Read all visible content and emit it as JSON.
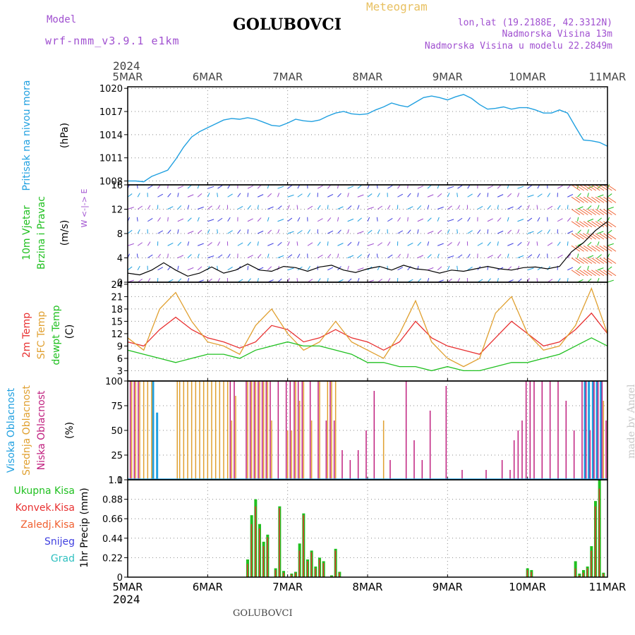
{
  "header": {
    "model_label": "Model",
    "model_name": "wrf-nmm_v3.9.1 e1km",
    "station": "GOLUBOVCI",
    "product": "Meteogram",
    "lonlat": "lon,lat (19.2188E, 42.3312N)",
    "elevation": "Nadmorska Visina 13m",
    "model_elevation": "Nadmorska Visina u modelu 22.2849m",
    "year": "2024",
    "footer_station": "GOLUBOVCI",
    "watermark": "made by Angel"
  },
  "colors": {
    "purple": "#a050d0",
    "orange": "#e8c060",
    "cyan": "#20a0e0",
    "green": "#20c020",
    "red": "#e83030",
    "brown": "#e0a030",
    "blue": "#4040e0",
    "magenta": "#c0207f",
    "teal": "#30c0c0",
    "lightgray": "#c8c8c8",
    "orangered": "#f06030"
  },
  "chart_data": [
    {
      "type": "line",
      "x_labels": [
        "5MAR",
        "6MAR",
        "7MAR",
        "8MAR",
        "9MAR",
        "10MAR",
        "11MAR"
      ],
      "x": [
        0.0,
        0.1,
        0.2,
        0.3,
        0.4,
        0.5,
        0.6,
        0.7,
        0.8,
        0.9,
        1.0,
        1.1,
        1.2,
        1.3,
        1.4,
        1.5,
        1.6,
        1.7,
        1.8,
        1.9,
        2.0,
        2.1,
        2.2,
        2.3,
        2.4,
        2.5,
        2.6,
        2.7,
        2.8,
        2.9,
        3.0,
        3.1,
        3.2,
        3.3,
        3.4,
        3.5,
        3.6,
        3.7,
        3.8,
        3.9,
        4.0,
        4.1,
        4.2,
        4.3,
        4.4,
        4.5,
        4.6,
        4.7,
        4.8,
        4.9,
        5.0,
        5.1,
        5.2,
        5.3,
        5.4,
        5.5,
        5.6,
        5.7,
        5.8,
        5.9,
        6.0
      ],
      "series": [
        {
          "values": [
            1008.0,
            1008.0,
            1007.9,
            1008.6,
            1009.0,
            1009.4,
            1010.8,
            1012.4,
            1013.7,
            1014.4,
            1014.9,
            1015.4,
            1015.9,
            1016.1,
            1016.0,
            1016.2,
            1016.0,
            1015.6,
            1015.2,
            1015.1,
            1015.5,
            1016.0,
            1015.8,
            1015.7,
            1015.9,
            1016.4,
            1016.8,
            1017.0,
            1016.7,
            1016.6,
            1016.7,
            1017.2,
            1017.6,
            1018.1,
            1017.8,
            1017.6,
            1018.2,
            1018.8,
            1019.0,
            1018.8,
            1018.5,
            1018.9,
            1019.2,
            1018.7,
            1017.9,
            1017.3,
            1017.4,
            1017.6,
            1017.3,
            1017.5,
            1017.5,
            1017.2,
            1016.8,
            1016.8,
            1017.2,
            1016.8,
            1015.0,
            1013.3,
            1013.2,
            1013.0,
            1012.5
          ]
        }
      ],
      "ylabel": "(hPa)",
      "ylabel_left": "Pritisak na nivou mora",
      "yticks": [
        1008,
        1011,
        1014,
        1017,
        1020
      ],
      "ylim": [
        1007.5,
        1020.2
      ],
      "grid": true
    },
    {
      "type": "line",
      "x": [
        0.0,
        0.15,
        0.3,
        0.45,
        0.6,
        0.75,
        0.9,
        1.05,
        1.2,
        1.35,
        1.5,
        1.65,
        1.8,
        1.95,
        2.1,
        2.25,
        2.4,
        2.55,
        2.7,
        2.85,
        3.0,
        3.15,
        3.3,
        3.45,
        3.6,
        3.75,
        3.9,
        4.05,
        4.2,
        4.35,
        4.5,
        4.65,
        4.8,
        4.95,
        5.1,
        5.25,
        5.4,
        5.55,
        5.7,
        5.85,
        6.0
      ],
      "series": [
        {
          "values": [
            1.5,
            1.2,
            2.0,
            3.2,
            2.0,
            1.0,
            1.5,
            2.5,
            1.5,
            2.0,
            3.0,
            2.0,
            1.8,
            2.6,
            2.4,
            1.8,
            2.5,
            2.8,
            2.0,
            1.6,
            2.2,
            2.6,
            2.0,
            2.8,
            2.2,
            2.0,
            1.5,
            2.0,
            1.8,
            2.2,
            2.6,
            2.2,
            2.0,
            2.4,
            2.5,
            2.2,
            2.6,
            5.0,
            6.5,
            8.5,
            10.0
          ]
        }
      ],
      "ylabel": "(m/s)",
      "ylabel_left": [
        "10m Vjetar",
        "Brzina i Pravac"
      ],
      "legend_compass": "W <-|-> E",
      "yticks": [
        0,
        4,
        8,
        12,
        16
      ],
      "ylim": [
        0,
        16
      ],
      "grid": true
    },
    {
      "type": "line",
      "x": [
        0.0,
        0.2,
        0.4,
        0.6,
        0.8,
        1.0,
        1.2,
        1.4,
        1.6,
        1.8,
        2.0,
        2.2,
        2.4,
        2.6,
        2.8,
        3.0,
        3.2,
        3.4,
        3.6,
        3.8,
        4.0,
        4.2,
        4.4,
        4.6,
        4.8,
        5.0,
        5.2,
        5.4,
        5.6,
        5.8,
        6.0
      ],
      "series": [
        {
          "name": "2m Temp",
          "values": [
            10,
            9,
            13,
            16,
            13,
            11,
            10,
            8.5,
            10,
            14,
            13,
            10,
            11,
            13,
            11,
            10,
            8,
            10,
            15,
            11,
            9,
            8,
            7,
            11,
            15,
            12,
            9,
            10,
            13,
            17,
            12
          ]
        },
        {
          "name": "SFC Temp",
          "values": [
            11,
            8,
            18,
            22,
            15,
            10,
            9,
            7,
            14,
            18,
            12,
            8,
            10,
            15,
            10,
            8,
            6,
            12,
            20,
            10,
            6,
            4,
            6,
            17,
            21,
            12,
            8,
            9,
            14,
            23,
            12
          ]
        },
        {
          "name": "dewpt Temp",
          "values": [
            8,
            7,
            6,
            5,
            6,
            7,
            7,
            6,
            8,
            9,
            10,
            9,
            9,
            8,
            7,
            5,
            5,
            4,
            4,
            3,
            4,
            3,
            3,
            4,
            5,
            5,
            6,
            7,
            9,
            11,
            9
          ]
        }
      ],
      "ylabel": "(C)",
      "yticks": [
        3,
        6,
        9,
        12,
        15,
        18,
        21,
        24
      ],
      "ylim": [
        0.5,
        24.5
      ],
      "grid": true
    },
    {
      "type": "bar",
      "x": [
        0.05,
        0.1,
        0.15,
        0.2,
        0.25,
        0.3,
        0.35,
        0.62,
        0.65,
        0.7,
        0.75,
        0.8,
        0.85,
        0.9,
        0.95,
        1.0,
        1.05,
        1.1,
        1.15,
        1.2,
        1.25,
        1.3,
        1.35,
        1.5,
        1.55,
        1.6,
        1.65,
        1.7,
        1.75,
        1.8,
        1.9,
        2.0,
        2.05,
        2.1,
        2.15,
        2.2,
        2.3,
        2.4,
        2.5,
        2.55,
        2.6,
        2.7,
        2.8,
        2.9,
        3.0,
        3.1,
        3.2,
        3.3,
        3.4,
        3.5,
        3.6,
        3.7,
        3.8,
        4.0,
        4.2,
        4.5,
        4.7,
        4.8,
        4.85,
        4.9,
        4.95,
        5.0,
        5.05,
        5.1,
        5.2,
        5.3,
        5.4,
        5.5,
        5.6,
        5.7,
        5.75,
        5.8,
        5.85,
        5.9,
        5.95,
        6.0
      ],
      "series": [
        {
          "name": "Visoka Oblacnost",
          "values": [
            0,
            0,
            0,
            0,
            0,
            100,
            68,
            0,
            0,
            0,
            0,
            0,
            0,
            0,
            0,
            0,
            0,
            0,
            0,
            0,
            0,
            0,
            0,
            0,
            0,
            0,
            0,
            0,
            0,
            0,
            0,
            0,
            0,
            0,
            0,
            0,
            0,
            0,
            0,
            0,
            0,
            0,
            0,
            0,
            0,
            0,
            0,
            0,
            0,
            0,
            0,
            0,
            0,
            0,
            0,
            0,
            0,
            0,
            0,
            0,
            0,
            0,
            0,
            0,
            0,
            0,
            0,
            0,
            0,
            100,
            100,
            100,
            100,
            100,
            0,
            0
          ]
        },
        {
          "name": "Srednja Oblacnost",
          "values": [
            100,
            100,
            100,
            100,
            100,
            100,
            0,
            100,
            100,
            100,
            100,
            100,
            100,
            100,
            100,
            100,
            100,
            100,
            100,
            100,
            100,
            60,
            85,
            100,
            100,
            100,
            100,
            100,
            100,
            60,
            0,
            50,
            50,
            100,
            80,
            100,
            60,
            100,
            100,
            100,
            100,
            0,
            0,
            0,
            0,
            0,
            60,
            0,
            0,
            0,
            0,
            0,
            0,
            0,
            0,
            0,
            0,
            0,
            0,
            0,
            0,
            0,
            0,
            0,
            0,
            0,
            0,
            0,
            0,
            0,
            0,
            0,
            0,
            0,
            80,
            100
          ]
        },
        {
          "name": "Niska Oblacnost",
          "values": [
            100,
            100,
            100,
            0,
            0,
            0,
            0,
            0,
            0,
            0,
            0,
            0,
            0,
            0,
            0,
            0,
            0,
            0,
            0,
            0,
            0,
            100,
            100,
            100,
            100,
            100,
            100,
            100,
            100,
            100,
            100,
            100,
            100,
            100,
            100,
            100,
            100,
            100,
            60,
            100,
            60,
            30,
            20,
            30,
            50,
            90,
            0,
            20,
            0,
            100,
            40,
            20,
            70,
            95,
            10,
            10,
            20,
            10,
            40,
            50,
            60,
            100,
            100,
            100,
            100,
            100,
            100,
            80,
            50,
            100,
            100,
            50,
            100,
            100,
            100,
            60
          ]
        }
      ],
      "ylabel": "(%)",
      "yticks": [
        0,
        25,
        50,
        75,
        100
      ],
      "ylim": [
        0,
        100
      ],
      "grid": true
    },
    {
      "type": "bar",
      "x": [
        1.5,
        1.55,
        1.6,
        1.65,
        1.7,
        1.75,
        1.8,
        1.85,
        1.9,
        1.95,
        2.0,
        2.05,
        2.1,
        2.15,
        2.2,
        2.25,
        2.3,
        2.35,
        2.4,
        2.45,
        2.5,
        2.55,
        2.6,
        2.65,
        2.7,
        2.75,
        2.8,
        2.85,
        2.9,
        2.95,
        5.0,
        5.05,
        5.55,
        5.6,
        5.65,
        5.7,
        5.75,
        5.8,
        5.85,
        5.9,
        5.95
      ],
      "series": [
        {
          "name": "Ukupna Kisa",
          "values": [
            0.2,
            0.7,
            0.88,
            0.6,
            0.4,
            0.48,
            0,
            0.1,
            0.8,
            0.07,
            0,
            0.04,
            0.06,
            0.38,
            0.72,
            0.2,
            0.3,
            0.12,
            0.22,
            0.18,
            0,
            0.02,
            0.32,
            0.06,
            0,
            0,
            0,
            0,
            0,
            0,
            0.1,
            0.08,
            0,
            0.18,
            0.04,
            0.08,
            0.12,
            0.35,
            0.86,
            1.1,
            0.05
          ]
        },
        {
          "name": "Konvek.Kisa",
          "values": [
            0.15,
            0.6,
            0.8,
            0.55,
            0.35,
            0.45,
            0,
            0.08,
            0.78,
            0.05,
            0,
            0.03,
            0.05,
            0.3,
            0.7,
            0.18,
            0.28,
            0.1,
            0.2,
            0.16,
            0,
            0.01,
            0.3,
            0.05,
            0,
            0,
            0,
            0,
            0,
            0,
            0.08,
            0.06,
            0,
            0.1,
            0.02,
            0.05,
            0.1,
            0.3,
            0.8,
            1.0,
            0.04
          ]
        }
      ],
      "legend": [
        "Ukupna Kisa",
        "Konvek.Kisa",
        "Zaledj.Kisa",
        "Snijeg",
        "Grad"
      ],
      "ylabel": "1hr Precip (mm)",
      "yticks": [
        0,
        0.22,
        0.44,
        0.66,
        0.88,
        1.1
      ],
      "ylim": [
        0,
        1.1
      ],
      "grid": true
    }
  ]
}
